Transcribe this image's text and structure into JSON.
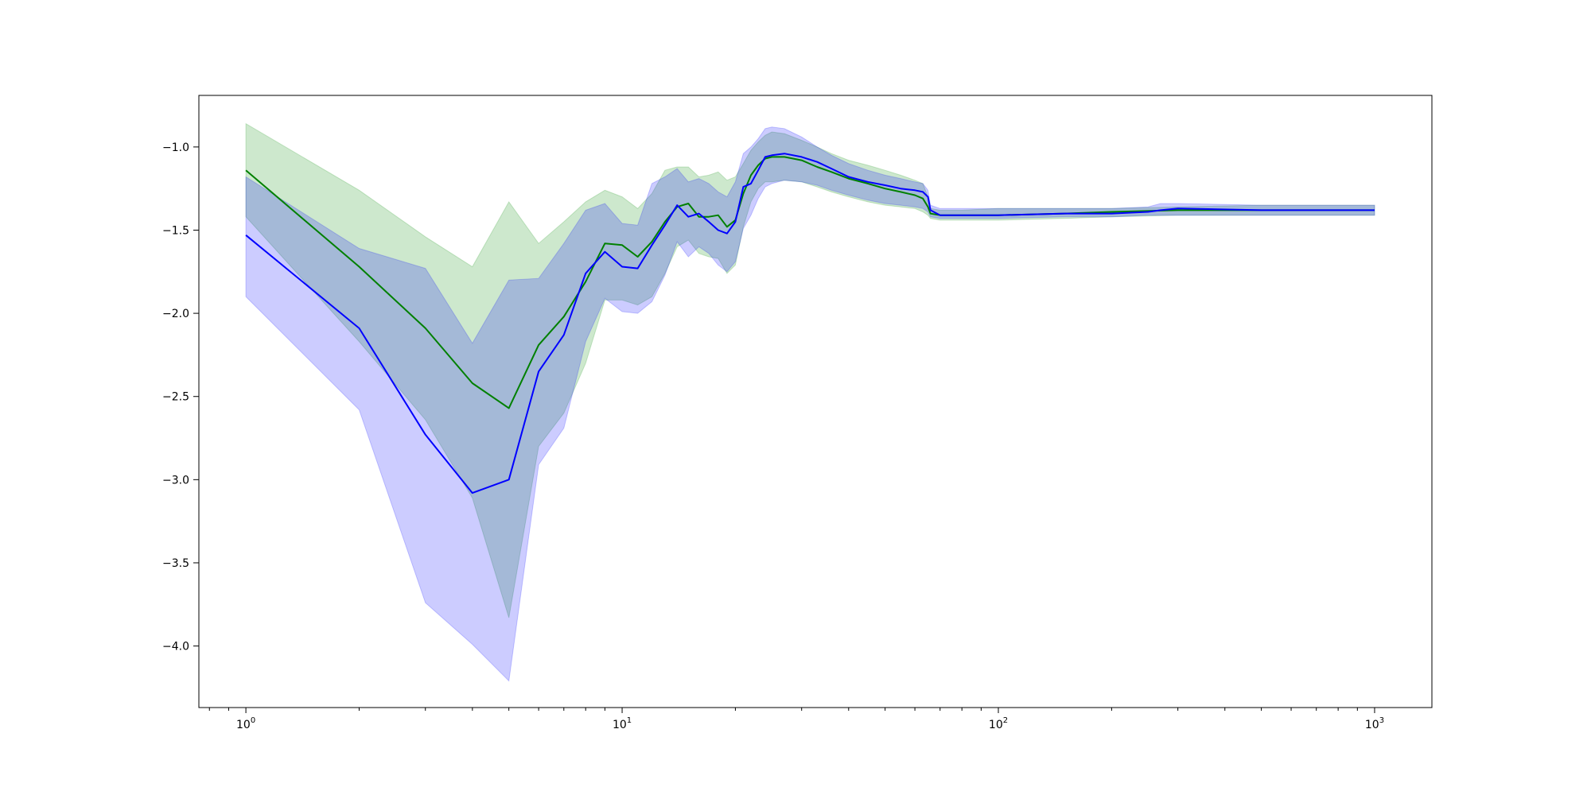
{
  "chart_data": {
    "type": "line",
    "xscale": "log",
    "xlim": [
      0.75,
      1420
    ],
    "ylim": [
      -4.37,
      -0.69
    ],
    "grid": false,
    "legend": "none",
    "x_ticks": [
      {
        "value": 1,
        "base": "10",
        "exp": "0"
      },
      {
        "value": 10,
        "base": "10",
        "exp": "1"
      },
      {
        "value": 100,
        "base": "10",
        "exp": "2"
      },
      {
        "value": 1000,
        "base": "10",
        "exp": "3"
      }
    ],
    "y_ticks": [
      {
        "value": -1.0,
        "label": "−1.0"
      },
      {
        "value": -1.5,
        "label": "−1.5"
      },
      {
        "value": -2.0,
        "label": "−2.0"
      },
      {
        "value": -2.5,
        "label": "−2.5"
      },
      {
        "value": -3.0,
        "label": "−3.0"
      },
      {
        "value": -3.5,
        "label": "−3.5"
      },
      {
        "value": -4.0,
        "label": "−4.0"
      }
    ],
    "series": [
      {
        "color": "#008000",
        "band_color": "#2ca02c",
        "band_opacity": 0.24,
        "x": [
          1,
          2,
          3,
          4,
          5,
          6,
          7,
          8,
          9,
          10,
          11,
          12,
          13,
          14,
          15,
          16,
          17,
          18,
          19,
          20,
          21,
          22,
          23,
          24,
          25,
          27,
          30,
          33,
          36,
          40,
          45,
          50,
          55,
          60,
          63,
          65,
          66,
          70,
          80,
          100,
          150,
          200,
          300,
          500,
          1000
        ],
        "y": [
          -1.14,
          -1.72,
          -2.09,
          -2.42,
          -2.57,
          -2.19,
          -2.02,
          -1.81,
          -1.58,
          -1.59,
          -1.66,
          -1.57,
          -1.45,
          -1.36,
          -1.34,
          -1.42,
          -1.42,
          -1.41,
          -1.48,
          -1.44,
          -1.28,
          -1.17,
          -1.11,
          -1.07,
          -1.06,
          -1.06,
          -1.08,
          -1.12,
          -1.15,
          -1.19,
          -1.22,
          -1.25,
          -1.27,
          -1.29,
          -1.31,
          -1.36,
          -1.4,
          -1.41,
          -1.41,
          -1.41,
          -1.4,
          -1.39,
          -1.38,
          -1.38,
          -1.38
        ],
        "upper": [
          -0.86,
          -1.26,
          -1.54,
          -1.72,
          -1.33,
          -1.58,
          -1.45,
          -1.33,
          -1.26,
          -1.3,
          -1.37,
          -1.28,
          -1.14,
          -1.12,
          -1.12,
          -1.18,
          -1.17,
          -1.15,
          -1.2,
          -1.18,
          -1.1,
          -1.02,
          -0.97,
          -0.93,
          -0.91,
          -0.92,
          -0.96,
          -1.0,
          -1.04,
          -1.08,
          -1.11,
          -1.14,
          -1.17,
          -1.2,
          -1.22,
          -1.3,
          -1.37,
          -1.38,
          -1.38,
          -1.37,
          -1.37,
          -1.37,
          -1.36,
          -1.35,
          -1.35
        ],
        "lower": [
          -1.42,
          -2.17,
          -2.64,
          -3.11,
          -3.83,
          -2.8,
          -2.6,
          -2.3,
          -1.92,
          -1.92,
          -1.95,
          -1.9,
          -1.76,
          -1.6,
          -1.56,
          -1.64,
          -1.66,
          -1.67,
          -1.76,
          -1.71,
          -1.48,
          -1.33,
          -1.25,
          -1.21,
          -1.21,
          -1.2,
          -1.21,
          -1.24,
          -1.27,
          -1.3,
          -1.33,
          -1.35,
          -1.36,
          -1.37,
          -1.39,
          -1.41,
          -1.43,
          -1.44,
          -1.44,
          -1.44,
          -1.43,
          -1.42,
          -1.41,
          -1.41,
          -1.41
        ]
      },
      {
        "color": "#0000ff",
        "band_color": "#0000ff",
        "band_opacity": 0.2,
        "x": [
          1,
          2,
          3,
          4,
          5,
          6,
          7,
          8,
          9,
          10,
          11,
          12,
          13,
          14,
          15,
          16,
          17,
          18,
          19,
          20,
          21,
          22,
          23,
          24,
          25,
          27,
          30,
          33,
          36,
          40,
          45,
          50,
          55,
          60,
          63,
          65,
          66,
          70,
          80,
          100,
          150,
          200,
          250,
          270,
          300,
          500,
          1000
        ],
        "y": [
          -1.53,
          -2.09,
          -2.73,
          -3.08,
          -3.0,
          -2.35,
          -2.13,
          -1.76,
          -1.63,
          -1.72,
          -1.73,
          -1.59,
          -1.47,
          -1.35,
          -1.42,
          -1.4,
          -1.45,
          -1.5,
          -1.52,
          -1.45,
          -1.24,
          -1.22,
          -1.14,
          -1.06,
          -1.05,
          -1.04,
          -1.06,
          -1.09,
          -1.13,
          -1.18,
          -1.21,
          -1.23,
          -1.25,
          -1.26,
          -1.27,
          -1.3,
          -1.38,
          -1.41,
          -1.41,
          -1.41,
          -1.4,
          -1.4,
          -1.39,
          -1.38,
          -1.37,
          -1.38,
          -1.38
        ],
        "upper": [
          -1.18,
          -1.61,
          -1.73,
          -2.18,
          -1.8,
          -1.79,
          -1.58,
          -1.38,
          -1.34,
          -1.46,
          -1.47,
          -1.22,
          -1.18,
          -1.13,
          -1.21,
          -1.19,
          -1.22,
          -1.27,
          -1.3,
          -1.21,
          -1.04,
          -1.0,
          -0.95,
          -0.89,
          -0.88,
          -0.89,
          -0.94,
          -1.0,
          -1.05,
          -1.1,
          -1.14,
          -1.17,
          -1.19,
          -1.21,
          -1.22,
          -1.26,
          -1.35,
          -1.37,
          -1.37,
          -1.37,
          -1.37,
          -1.37,
          -1.36,
          -1.34,
          -1.34,
          -1.35,
          -1.35
        ],
        "lower": [
          -1.9,
          -2.58,
          -3.74,
          -3.99,
          -4.21,
          -2.91,
          -2.69,
          -2.17,
          -1.91,
          -1.99,
          -2.0,
          -1.93,
          -1.77,
          -1.57,
          -1.66,
          -1.6,
          -1.64,
          -1.71,
          -1.75,
          -1.69,
          -1.49,
          -1.41,
          -1.31,
          -1.24,
          -1.22,
          -1.2,
          -1.21,
          -1.23,
          -1.26,
          -1.29,
          -1.32,
          -1.34,
          -1.35,
          -1.36,
          -1.37,
          -1.39,
          -1.42,
          -1.43,
          -1.43,
          -1.43,
          -1.42,
          -1.42,
          -1.41,
          -1.41,
          -1.41,
          -1.41,
          -1.41
        ]
      }
    ]
  }
}
